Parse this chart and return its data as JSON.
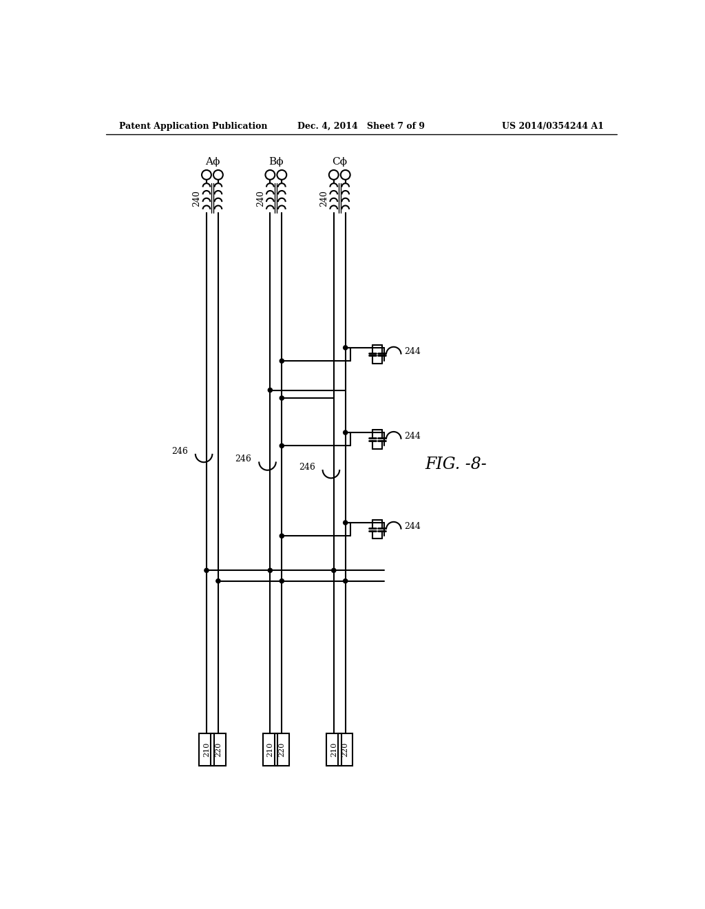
{
  "header_left": "Patent Application Publication",
  "header_center": "Dec. 4, 2014   Sheet 7 of 9",
  "header_right": "US 2014/0354244 A1",
  "fig_label": "FIG. -8-",
  "phase_labels": [
    "Aϕ",
    "Bϕ",
    "Cϕ"
  ],
  "ref_240": "240",
  "ref_244": "244",
  "ref_246": "246",
  "ref_210": "210",
  "ref_220": "220",
  "bg_color": "#ffffff",
  "line_color": "#000000"
}
